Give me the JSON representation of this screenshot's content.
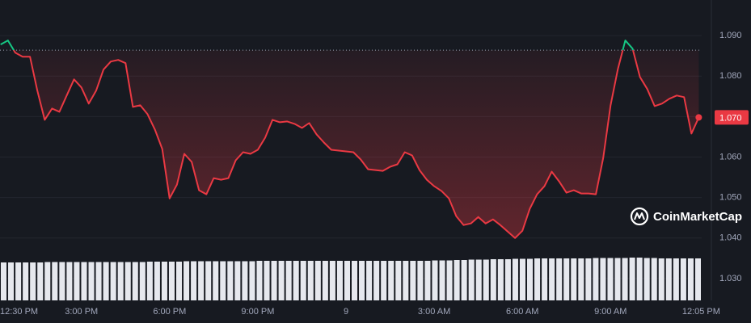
{
  "chart_data": {
    "type": "line",
    "watermark": "CoinMarketCap",
    "x": [
      12.25,
      12.5,
      12.75,
      13,
      13.25,
      13.5,
      13.75,
      14,
      14.25,
      14.5,
      14.75,
      15,
      15.25,
      15.5,
      15.75,
      16,
      16.25,
      16.5,
      16.75,
      17,
      17.25,
      17.5,
      17.75,
      18,
      18.25,
      18.5,
      18.75,
      19,
      19.25,
      19.5,
      19.75,
      20,
      20.25,
      20.5,
      20.75,
      21,
      21.25,
      21.5,
      21.75,
      22,
      22.25,
      22.5,
      22.75,
      23,
      23.25,
      23.5,
      23.75,
      24,
      24.25,
      24.5,
      24.75,
      25,
      25.25,
      25.5,
      25.75,
      26,
      26.25,
      26.5,
      26.75,
      27,
      27.25,
      27.5,
      27.75,
      28,
      28.25,
      28.5,
      28.75,
      29,
      29.25,
      29.5,
      29.75,
      30,
      30.25,
      30.5,
      30.75,
      31,
      31.25,
      31.5,
      31.75,
      32,
      32.25,
      32.5,
      32.75,
      33,
      33.25,
      33.5,
      33.75,
      34,
      34.25,
      34.5,
      34.75,
      35,
      35.25,
      35.5,
      35.75,
      36
    ],
    "values": [
      1.0878,
      1.0888,
      1.0858,
      1.0848,
      1.0848,
      1.0764,
      1.0692,
      1.072,
      1.0712,
      1.0752,
      1.0792,
      1.0772,
      1.0732,
      1.0764,
      1.0816,
      1.0836,
      1.084,
      1.0832,
      1.0724,
      1.0728,
      1.0706,
      1.0668,
      1.062,
      1.0498,
      1.0532,
      1.0608,
      1.0588,
      1.0518,
      1.0508,
      1.0548,
      1.0544,
      1.0548,
      1.0592,
      1.0612,
      1.0608,
      1.0618,
      1.0648,
      1.0692,
      1.0686,
      1.0688,
      1.0682,
      1.0672,
      1.0684,
      1.0656,
      1.0636,
      1.0618,
      1.0616,
      1.0614,
      1.0612,
      1.0594,
      1.057,
      1.0568,
      1.0566,
      1.0576,
      1.0582,
      1.0612,
      1.0604,
      1.0568,
      1.0544,
      1.0528,
      1.0516,
      1.0498,
      1.0454,
      1.0432,
      1.0436,
      1.0452,
      1.0436,
      1.0446,
      1.0432,
      1.0416,
      1.04,
      1.0418,
      1.0472,
      1.0508,
      1.0528,
      1.0564,
      1.054,
      1.0512,
      1.0518,
      1.051,
      1.051,
      1.0508,
      1.0598,
      1.0728,
      1.0818,
      1.0888,
      1.0868,
      1.0798,
      1.0768,
      1.0726,
      1.0732,
      1.0744,
      1.0752,
      1.0748,
      1.0658,
      1.0698
    ],
    "value_labels": [
      null,
      null,
      null,
      null,
      null,
      null,
      null,
      null,
      null,
      null,
      null,
      null,
      null,
      null,
      null,
      null,
      null,
      null,
      null,
      null,
      null,
      null,
      null,
      null,
      null,
      null,
      null,
      null,
      null,
      null,
      null,
      null,
      null,
      null,
      null,
      null,
      null,
      null,
      null,
      null,
      null,
      null,
      null,
      null,
      null,
      null,
      null,
      null,
      null,
      null,
      null,
      null,
      null,
      null,
      null,
      null,
      null,
      null,
      null,
      null,
      null,
      null,
      null,
      null,
      null,
      null,
      null,
      null,
      null,
      null,
      null,
      null,
      null,
      null,
      null,
      null,
      null,
      null,
      null,
      null,
      null,
      null,
      null,
      null,
      null,
      null,
      null,
      null,
      null,
      null,
      null,
      null,
      null,
      null,
      null,
      "1.070"
    ],
    "volume": [
      94,
      94,
      94,
      94,
      94,
      94,
      95,
      95,
      95,
      95,
      95,
      95,
      95,
      95,
      95,
      95,
      95,
      95,
      95,
      95,
      96,
      96,
      96,
      96,
      96,
      97,
      97,
      97,
      97,
      97,
      97,
      97,
      97,
      97,
      97,
      98,
      98,
      98,
      98,
      98,
      98,
      98,
      98,
      98,
      98,
      98,
      98,
      98,
      98,
      98,
      98,
      98,
      98,
      98,
      98,
      98,
      98,
      98,
      98,
      99,
      99,
      99,
      100,
      100,
      101,
      101,
      101,
      102,
      102,
      102,
      103,
      103,
      103,
      104,
      104,
      104,
      104,
      104,
      104,
      104,
      104,
      105,
      105,
      105,
      105,
      105,
      106,
      106,
      105,
      105,
      104,
      104,
      104,
      104,
      104,
      104
    ],
    "baseline": 1.0864,
    "color_down": "#ea3943",
    "color_up": "#16c784",
    "volume_color": "#e6e8ee",
    "xlim": [
      12.23,
      36.1
    ],
    "ylim": [
      1.0246,
      1.0988
    ],
    "xticks": [
      {
        "value": 12.5,
        "label": "12:30 PM"
      },
      {
        "value": 15,
        "label": "3:00 PM"
      },
      {
        "value": 18,
        "label": "6:00 PM"
      },
      {
        "value": 21,
        "label": "9:00 PM"
      },
      {
        "value": 24,
        "label": "9"
      },
      {
        "value": 27,
        "label": "3:00 AM"
      },
      {
        "value": 30,
        "label": "6:00 AM"
      },
      {
        "value": 33,
        "label": "9:00 AM"
      },
      {
        "value": 36.083,
        "label": "12:05 PM"
      }
    ],
    "yticks": [
      {
        "value": 1.03,
        "label": "1.030"
      },
      {
        "value": 1.04,
        "label": "1.040"
      },
      {
        "value": 1.05,
        "label": "1.050"
      },
      {
        "value": 1.06,
        "label": "1.060"
      },
      {
        "value": 1.07,
        "label": "1.070"
      },
      {
        "value": 1.08,
        "label": "1.080"
      },
      {
        "value": 1.09,
        "label": "1.090"
      }
    ],
    "grid": true
  }
}
